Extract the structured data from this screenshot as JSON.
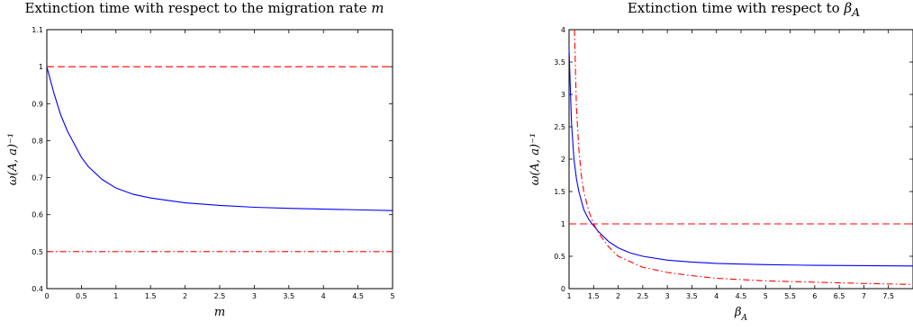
{
  "chart_data": [
    {
      "type": "line",
      "title": "Extinction time with respect to the migration rate m",
      "xlabel": "m",
      "ylabel": "ω(A, a)⁻¹",
      "xlim": [
        0,
        5
      ],
      "ylim": [
        0.4,
        1.1
      ],
      "xticks": [
        0,
        0.5,
        1,
        1.5,
        2,
        2.5,
        3,
        3.5,
        4,
        4.5,
        5
      ],
      "yticks": [
        0.4,
        0.5,
        0.6,
        0.7,
        0.8,
        0.9,
        1,
        1.1
      ],
      "grid": false,
      "series": [
        {
          "style": "solid",
          "color": "#0000ff",
          "x": [
            0,
            0.1,
            0.2,
            0.3,
            0.4,
            0.5,
            0.6,
            0.8,
            1.0,
            1.25,
            1.5,
            2.0,
            2.5,
            3.0,
            3.5,
            4.0,
            4.5,
            5.0
          ],
          "y": [
            1.0,
            0.93,
            0.87,
            0.825,
            0.79,
            0.755,
            0.73,
            0.695,
            0.672,
            0.655,
            0.645,
            0.632,
            0.625,
            0.62,
            0.617,
            0.615,
            0.613,
            0.611
          ]
        },
        {
          "style": "dashed",
          "color": "#ff0000",
          "x": [
            0,
            5
          ],
          "y": [
            1.0,
            1.0
          ]
        },
        {
          "style": "dashdot",
          "color": "#ff0000",
          "x": [
            0,
            5
          ],
          "y": [
            0.5,
            0.5
          ]
        }
      ]
    },
    {
      "type": "line",
      "title": "Extinction time with respect to β_A",
      "xlabel": "β_A",
      "ylabel": "ω(A, a)⁻¹",
      "xlim": [
        1,
        8
      ],
      "ylim": [
        0,
        4
      ],
      "xticks": [
        1,
        1.5,
        2,
        2.5,
        3,
        3.5,
        4,
        4.5,
        5,
        5.5,
        6,
        6.5,
        7,
        7.5
      ],
      "yticks": [
        0,
        0.5,
        1,
        1.5,
        2,
        2.5,
        3,
        3.5,
        4
      ],
      "grid": false,
      "series": [
        {
          "style": "solid",
          "color": "#0000ff",
          "x": [
            1.0,
            1.05,
            1.1,
            1.15,
            1.2,
            1.3,
            1.4,
            1.5,
            1.6,
            1.8,
            2.0,
            2.25,
            2.5,
            3.0,
            3.5,
            4.0,
            4.5,
            5.0,
            6.0,
            7.0,
            8.0
          ],
          "y": [
            3.7,
            2.55,
            2.0,
            1.7,
            1.5,
            1.22,
            1.07,
            0.97,
            0.88,
            0.73,
            0.63,
            0.55,
            0.5,
            0.44,
            0.41,
            0.39,
            0.38,
            0.37,
            0.36,
            0.355,
            0.35
          ]
        },
        {
          "style": "dashed",
          "color": "#ff0000",
          "x": [
            1,
            8
          ],
          "y": [
            1.0,
            1.0
          ]
        },
        {
          "style": "dashdot",
          "color": "#ff0000",
          "x": [
            1.11,
            1.15,
            1.2,
            1.25,
            1.3,
            1.4,
            1.5,
            1.6,
            1.8,
            2.0,
            2.5,
            3.0,
            3.5,
            4.0,
            4.5,
            5.0,
            6.0,
            7.0,
            8.0
          ],
          "y": [
            4.0,
            2.8,
            2.15,
            1.75,
            1.5,
            1.2,
            1.0,
            0.86,
            0.65,
            0.5,
            0.33,
            0.25,
            0.2,
            0.16,
            0.14,
            0.12,
            0.1,
            0.08,
            0.065
          ]
        }
      ]
    }
  ]
}
